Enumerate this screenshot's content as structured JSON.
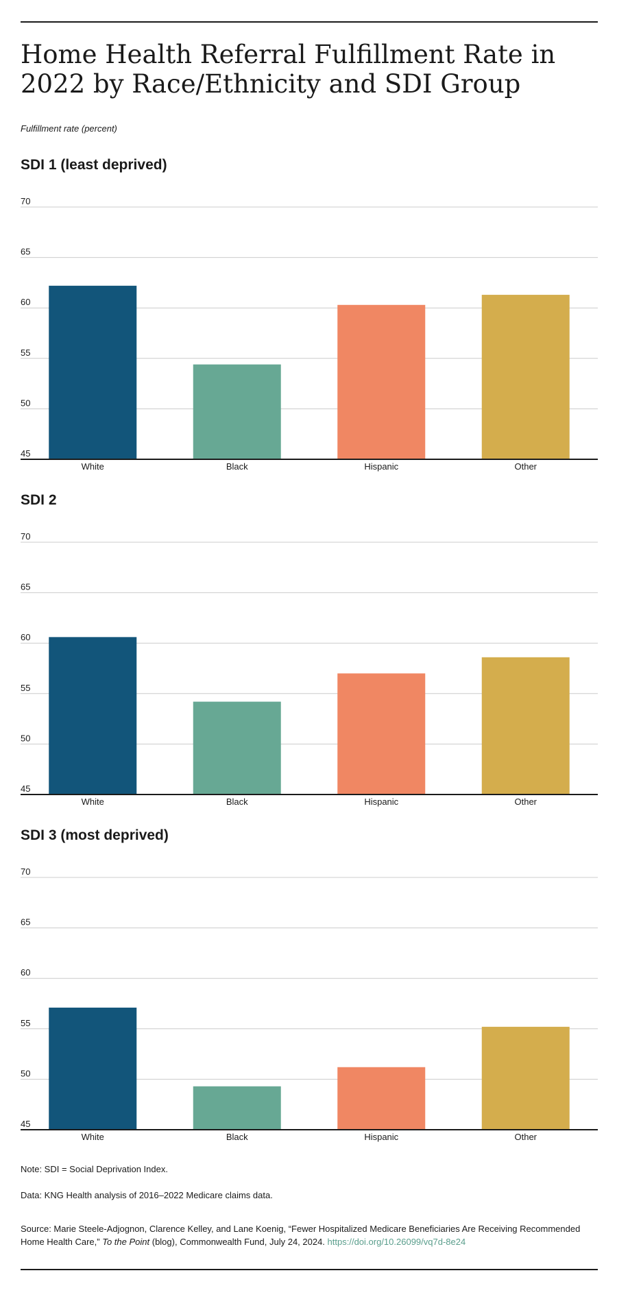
{
  "title": "Home Health Referral Fulfillment Rate in 2022 by Race/Ethnicity and SDI Group",
  "subtitle": "Fulfillment rate (percent)",
  "colors": {
    "White": "#12557a",
    "Black": "#67a894",
    "Hispanic": "#f08763",
    "Other": "#d4ad4d",
    "grid": "#cccccc",
    "axis": "#1a1a1a",
    "link": "#5a9e8c"
  },
  "chart_data": [
    {
      "type": "bar",
      "title": "SDI 1 (least deprived)",
      "categories": [
        "White",
        "Black",
        "Hispanic",
        "Other"
      ],
      "values": [
        62.2,
        54.4,
        60.3,
        61.3
      ],
      "ylim": [
        45,
        70
      ],
      "yticks": [
        "45",
        "50",
        "55",
        "60",
        "65",
        "70"
      ],
      "grid": true
    },
    {
      "type": "bar",
      "title": "SDI 2",
      "categories": [
        "White",
        "Black",
        "Hispanic",
        "Other"
      ],
      "values": [
        60.6,
        54.2,
        57.0,
        58.6
      ],
      "ylim": [
        45,
        70
      ],
      "yticks": [
        "45",
        "50",
        "55",
        "60",
        "65",
        "70"
      ],
      "grid": true
    },
    {
      "type": "bar",
      "title": "SDI 3 (most deprived)",
      "categories": [
        "White",
        "Black",
        "Hispanic",
        "Other"
      ],
      "values": [
        57.1,
        49.3,
        51.2,
        55.2
      ],
      "ylim": [
        45,
        70
      ],
      "yticks": [
        "45",
        "50",
        "55",
        "60",
        "65",
        "70"
      ],
      "grid": true
    }
  ],
  "footer": {
    "note": "Note: SDI = Social Deprivation Index.",
    "data": "Data: KNG Health analysis of 2016–2022 Medicare claims data.",
    "source_prefix": "Source: Marie Steele-Adjognon, Clarence Kelley, and Lane Koenig, “Fewer Hospitalized Medicare Beneficiaries Are Receiving Recommended Home Health Care,” ",
    "source_pub": "To the Point",
    "source_suffix": " (blog), Commonwealth Fund, July 24, 2024. ",
    "source_link": "https://doi.org/10.26099/vq7d-8e24"
  }
}
